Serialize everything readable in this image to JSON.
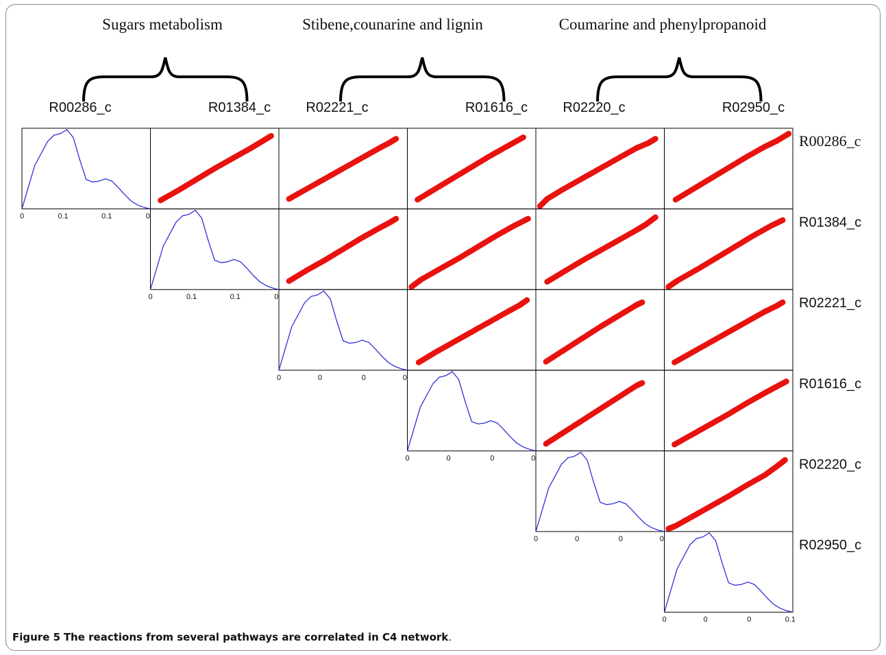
{
  "figure": {
    "caption_label": "Figure 5",
    "caption_text": "The reactions from several pathways are correlated in C4 network",
    "caption_end": "."
  },
  "pathways": [
    {
      "title": "Sugars metabolism",
      "members": [
        "R00286_c",
        "R01384_c"
      ]
    },
    {
      "title": "Stibene,counarine and lignin",
      "members": [
        "R02221_c",
        "R01616_c"
      ]
    },
    {
      "title": "Coumarine and phenylpropanoid",
      "members": [
        "R02220_c",
        "R02950_c"
      ]
    }
  ],
  "chart_data": {
    "type": "scatter",
    "layout": "upper-triangular scatterplot matrix with density plots on diagonal",
    "variables": [
      "R00286_c",
      "R01384_c",
      "R02221_c",
      "R01616_c",
      "R02220_c",
      "R02950_c"
    ],
    "column_labels": [
      "R00286_c",
      "R01384_c",
      "R02221_c",
      "R01616_c",
      "R02220_c",
      "R02950_c"
    ],
    "row_labels": [
      "R00286_c",
      "R01384_c",
      "R02221_c",
      "R01616_c",
      "R02220_c",
      "R02950_c"
    ],
    "diagonal_tick_labels": [
      [
        "0",
        "0.1",
        "0.1",
        "0"
      ],
      [
        "0",
        "0.1",
        "0.1",
        "0"
      ],
      [
        "0",
        "0",
        "0",
        "0"
      ],
      [
        "0",
        "0",
        "0",
        "0"
      ],
      [
        "0",
        "0",
        "0",
        "0"
      ],
      [
        "0",
        "0",
        "0",
        "0.1"
      ]
    ],
    "density_curve": {
      "color": "#2f2fd8",
      "x": [
        0,
        0.1,
        0.2,
        0.25,
        0.3,
        0.35,
        0.4,
        0.45,
        0.5,
        0.55,
        0.6,
        0.65,
        0.7,
        0.75,
        0.8,
        0.85,
        0.9,
        0.95,
        1.0
      ],
      "y": [
        0,
        0.55,
        0.85,
        0.93,
        0.95,
        1.0,
        0.9,
        0.62,
        0.37,
        0.34,
        0.35,
        0.38,
        0.35,
        0.27,
        0.18,
        0.1,
        0.05,
        0.02,
        0
      ]
    },
    "scatter_color": "#e8120f",
    "pairs": [
      {
        "row": "R00286_c",
        "col": "R01384_c",
        "x": [
          0.05,
          0.2,
          0.35,
          0.5,
          0.65,
          0.8,
          0.9,
          0.97
        ],
        "y": [
          0.08,
          0.22,
          0.37,
          0.52,
          0.66,
          0.8,
          0.9,
          0.97
        ]
      },
      {
        "row": "R00286_c",
        "col": "R02221_c",
        "x": [
          0.05,
          0.2,
          0.35,
          0.5,
          0.65,
          0.8,
          0.88,
          0.94
        ],
        "y": [
          0.1,
          0.24,
          0.38,
          0.52,
          0.66,
          0.8,
          0.87,
          0.93
        ]
      },
      {
        "row": "R00286_c",
        "col": "R01616_c",
        "x": [
          0.05,
          0.2,
          0.35,
          0.5,
          0.65,
          0.8,
          0.93
        ],
        "y": [
          0.09,
          0.24,
          0.39,
          0.54,
          0.69,
          0.83,
          0.95
        ]
      },
      {
        "row": "R00286_c",
        "col": "R02220_c",
        "x": [
          0.0,
          0.06,
          0.2,
          0.35,
          0.5,
          0.65,
          0.8,
          0.9,
          0.96
        ],
        "y": [
          0.0,
          0.1,
          0.24,
          0.38,
          0.52,
          0.66,
          0.8,
          0.87,
          0.93
        ]
      },
      {
        "row": "R00286_c",
        "col": "R02950_c",
        "x": [
          0.06,
          0.2,
          0.35,
          0.5,
          0.65,
          0.8,
          0.9,
          1.0
        ],
        "y": [
          0.09,
          0.23,
          0.38,
          0.53,
          0.68,
          0.82,
          0.9,
          1.0
        ]
      },
      {
        "row": "R01384_c",
        "col": "R02221_c",
        "x": [
          0.05,
          0.2,
          0.35,
          0.5,
          0.65,
          0.8,
          0.88,
          0.94
        ],
        "y": [
          0.08,
          0.23,
          0.37,
          0.52,
          0.67,
          0.81,
          0.88,
          0.94
        ]
      },
      {
        "row": "R01384_c",
        "col": "R01616_c",
        "x": [
          0.0,
          0.08,
          0.25,
          0.4,
          0.55,
          0.7,
          0.85,
          0.97
        ],
        "y": [
          0.0,
          0.1,
          0.26,
          0.4,
          0.55,
          0.7,
          0.84,
          0.94
        ]
      },
      {
        "row": "R01384_c",
        "col": "R02220_c",
        "x": [
          0.06,
          0.2,
          0.35,
          0.5,
          0.65,
          0.8,
          0.88,
          0.96
        ],
        "y": [
          0.07,
          0.21,
          0.36,
          0.5,
          0.64,
          0.78,
          0.86,
          0.96
        ]
      },
      {
        "row": "R01384_c",
        "col": "R02950_c",
        "x": [
          0.0,
          0.08,
          0.25,
          0.4,
          0.55,
          0.7,
          0.85,
          0.95
        ],
        "y": [
          0.0,
          0.09,
          0.25,
          0.4,
          0.55,
          0.7,
          0.84,
          0.92
        ]
      },
      {
        "row": "R02221_c",
        "col": "R01616_c",
        "x": [
          0.06,
          0.2,
          0.35,
          0.5,
          0.65,
          0.8,
          0.9,
          0.96
        ],
        "y": [
          0.07,
          0.21,
          0.35,
          0.49,
          0.63,
          0.77,
          0.86,
          0.93
        ]
      },
      {
        "row": "R02221_c",
        "col": "R02220_c",
        "x": [
          0.05,
          0.2,
          0.35,
          0.5,
          0.6,
          0.7,
          0.8,
          0.85
        ],
        "y": [
          0.08,
          0.24,
          0.4,
          0.56,
          0.66,
          0.76,
          0.86,
          0.9
        ]
      },
      {
        "row": "R02221_c",
        "col": "R02950_c",
        "x": [
          0.05,
          0.2,
          0.35,
          0.5,
          0.65,
          0.8,
          0.9,
          0.95
        ],
        "y": [
          0.07,
          0.21,
          0.35,
          0.49,
          0.63,
          0.77,
          0.85,
          0.9
        ]
      },
      {
        "row": "R01616_c",
        "col": "R02220_c",
        "x": [
          0.05,
          0.2,
          0.35,
          0.5,
          0.65,
          0.8,
          0.85
        ],
        "y": [
          0.06,
          0.22,
          0.38,
          0.54,
          0.7,
          0.86,
          0.9
        ]
      },
      {
        "row": "R01616_c",
        "col": "R02950_c",
        "x": [
          0.05,
          0.2,
          0.35,
          0.5,
          0.65,
          0.8,
          0.9,
          0.98
        ],
        "y": [
          0.05,
          0.19,
          0.33,
          0.47,
          0.62,
          0.76,
          0.85,
          0.92
        ]
      },
      {
        "row": "R02220_c",
        "col": "R02950_c",
        "x": [
          0.0,
          0.06,
          0.2,
          0.35,
          0.5,
          0.65,
          0.8,
          0.9,
          0.97
        ],
        "y": [
          0.0,
          0.04,
          0.17,
          0.31,
          0.45,
          0.6,
          0.74,
          0.86,
          0.95
        ]
      }
    ]
  }
}
